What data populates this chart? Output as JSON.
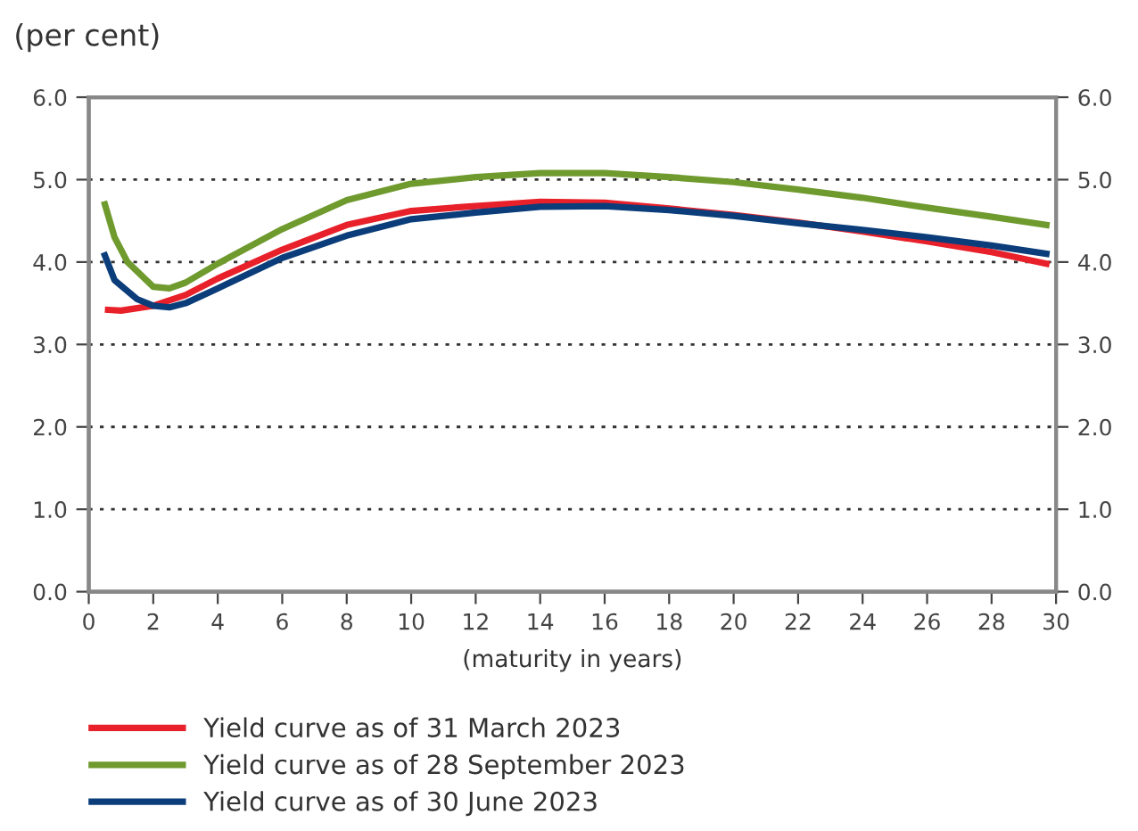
{
  "chart_data": {
    "type": "line",
    "subtitle": "(per cent)",
    "xlabel": "(maturity in years)",
    "xlim": [
      0,
      30
    ],
    "xticks": [
      0,
      2,
      4,
      6,
      8,
      10,
      12,
      14,
      16,
      18,
      20,
      22,
      24,
      26,
      28,
      30
    ],
    "ylim": [
      0,
      6
    ],
    "yticks": [
      {
        "value": 0,
        "label": "0.0"
      },
      {
        "value": 1,
        "label": "1.0"
      },
      {
        "value": 2,
        "label": "2.0"
      },
      {
        "value": 3,
        "label": "3.0"
      },
      {
        "value": 4,
        "label": "4.0"
      },
      {
        "value": 5,
        "label": "5.0"
      },
      {
        "value": 6,
        "label": "6.0"
      }
    ],
    "y2lim": [
      0,
      6
    ],
    "y2ticks": [
      {
        "value": 0,
        "label": "0.0"
      },
      {
        "value": 1,
        "label": "1.0"
      },
      {
        "value": 2,
        "label": "2.0"
      },
      {
        "value": 3,
        "label": "3.0"
      },
      {
        "value": 4,
        "label": "4.0"
      },
      {
        "value": 5,
        "label": "5.0"
      },
      {
        "value": 6,
        "label": "6.0"
      }
    ],
    "grid": "y",
    "legend": "bottom",
    "marker": "none",
    "line_style": "solid",
    "series": [
      {
        "name": "Yield curve as of 31 March 2023",
        "color": "#e8202a",
        "x": [
          0.6,
          1,
          2,
          3,
          4,
          6,
          8,
          10,
          12,
          14,
          16,
          18,
          20,
          22,
          24,
          26,
          28,
          29.7
        ],
        "values": [
          3.42,
          3.41,
          3.47,
          3.6,
          3.8,
          4.15,
          4.45,
          4.62,
          4.68,
          4.73,
          4.72,
          4.65,
          4.57,
          4.48,
          4.37,
          4.25,
          4.12,
          3.98
        ]
      },
      {
        "name": "Yield curve as of 28 September 2023",
        "color": "#6f9a2e",
        "x": [
          0.5,
          0.8,
          1.2,
          2,
          2.5,
          3,
          4,
          6,
          8,
          10,
          12,
          14,
          16,
          18,
          20,
          22,
          24,
          26,
          28,
          29.7
        ],
        "values": [
          4.7,
          4.3,
          4.0,
          3.7,
          3.68,
          3.75,
          3.98,
          4.4,
          4.75,
          4.95,
          5.03,
          5.08,
          5.08,
          5.03,
          4.97,
          4.88,
          4.78,
          4.66,
          4.55,
          4.45
        ]
      },
      {
        "name": "Yield curve as of 30 June 2023",
        "color": "#0b3d7a",
        "x": [
          0.5,
          0.8,
          1.5,
          2,
          2.5,
          3,
          4,
          6,
          8,
          10,
          12,
          14,
          16,
          18,
          20,
          22,
          24,
          26,
          28,
          29.7
        ],
        "values": [
          4.08,
          3.78,
          3.55,
          3.47,
          3.45,
          3.5,
          3.68,
          4.05,
          4.32,
          4.52,
          4.6,
          4.67,
          4.68,
          4.63,
          4.56,
          4.47,
          4.39,
          4.3,
          4.2,
          4.1
        ]
      }
    ]
  }
}
